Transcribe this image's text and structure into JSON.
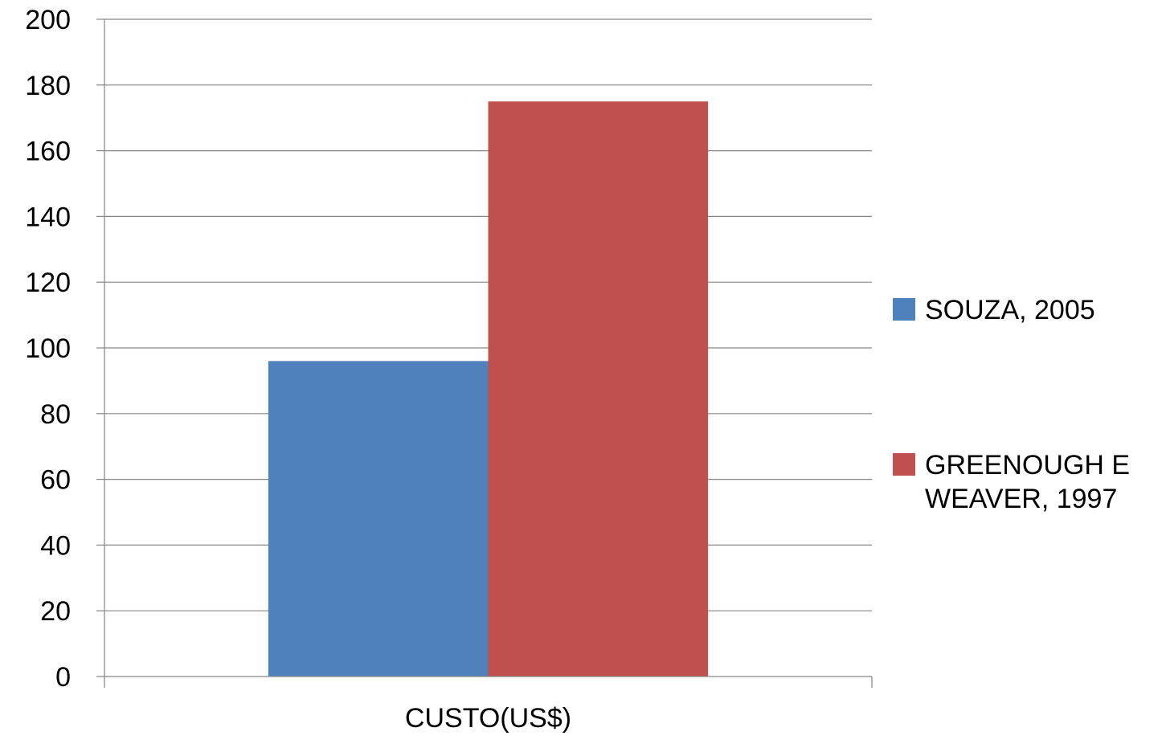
{
  "chart_data": {
    "type": "bar",
    "categories": [
      "CUSTO(US$)"
    ],
    "series": [
      {
        "name": "SOUZA, 2005",
        "values": [
          96
        ],
        "color": "#4F81BD"
      },
      {
        "name": "GREENOUGH E WEAVER, 1997",
        "values": [
          175
        ],
        "color": "#C0504D"
      }
    ],
    "yticks": [
      "0",
      "20",
      "40",
      "60",
      "80",
      "100",
      "120",
      "140",
      "160",
      "180",
      "200"
    ],
    "ylim": [
      0,
      200
    ],
    "grid": true,
    "legend": "right",
    "legend_lines": [
      [
        "SOUZA, 2005"
      ],
      [
        "GREENOUGH E",
        "WEAVER, 1997"
      ]
    ]
  }
}
